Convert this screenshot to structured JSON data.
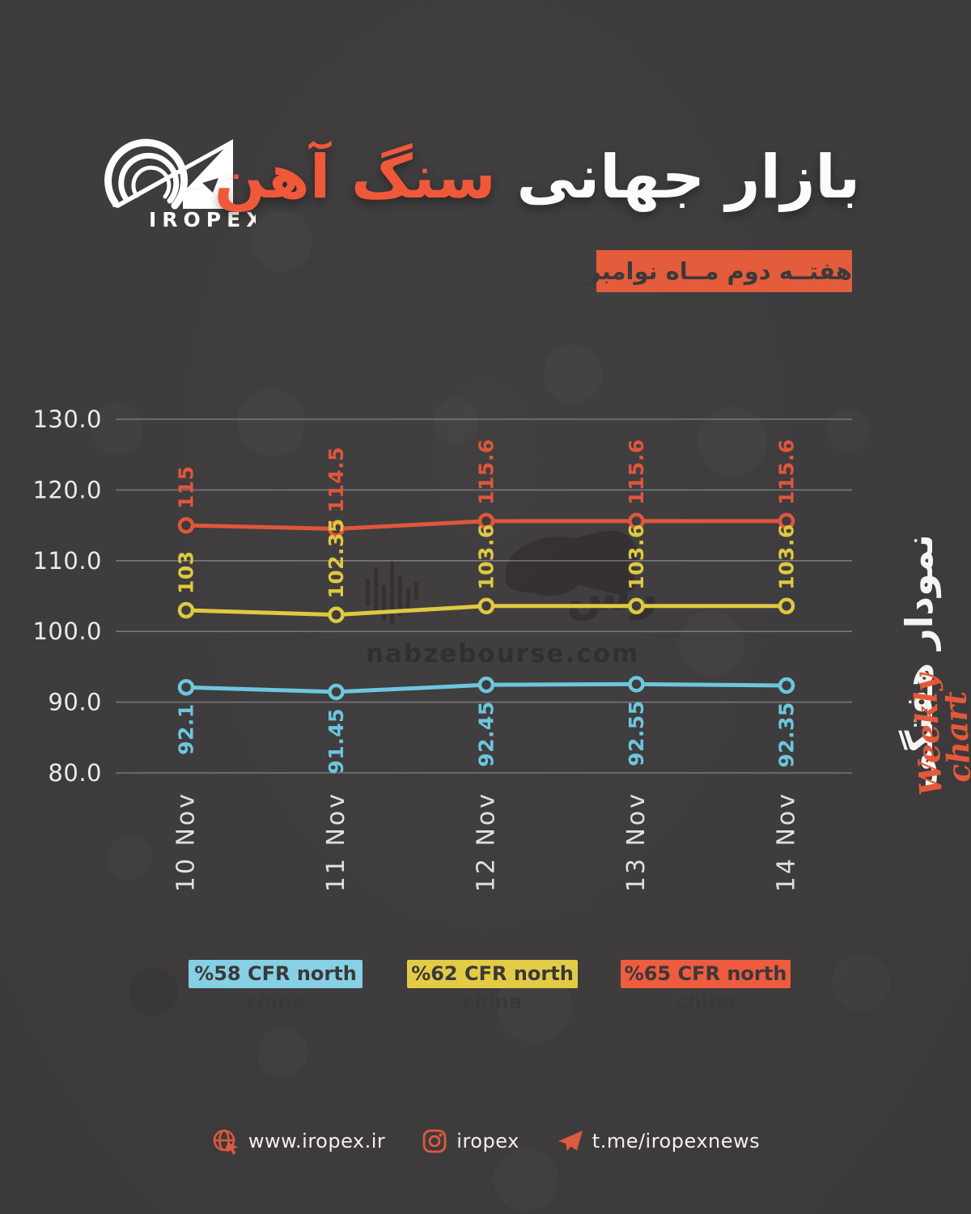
{
  "brand": {
    "logo_text": "IROPEX"
  },
  "header": {
    "title_primary": "بازار جهانی",
    "title_accent": "سنگ آهن",
    "subtitle": "هفتــه دوم مــاه نوامبر"
  },
  "side_label": {
    "persian": "نمودار هفتگی",
    "english_line1": "Weekly",
    "english_line2": "chart"
  },
  "watermark": {
    "persian": "نبض بورس",
    "domain": "nabzebourse.com"
  },
  "chart_data": {
    "type": "line",
    "x": [
      "10 Nov",
      "11 Nov",
      "12 Nov",
      "13 Nov",
      "14 Nov"
    ],
    "series": [
      {
        "name": "%65 CFR north china",
        "color": "#e0563c",
        "values": [
          115,
          114.5,
          115.6,
          115.6,
          115.6
        ],
        "data_label_position": "above"
      },
      {
        "name": "%62 CFR north china",
        "color": "#dfc93f",
        "values": [
          103,
          102.35,
          103.6,
          103.6,
          103.6
        ],
        "data_label_position": "above"
      },
      {
        "name": "%58 CFR north china",
        "color": "#6cc6de",
        "values": [
          92.1,
          91.45,
          92.45,
          92.55,
          92.35
        ],
        "data_label_position": "below"
      }
    ],
    "ylim": [
      80,
      130
    ],
    "yticks": [
      130,
      120,
      110,
      100,
      90,
      80
    ],
    "ytick_labels": [
      "130.0",
      "120.0",
      "110.0",
      "100.0",
      "90.0",
      "80.0"
    ],
    "grid": true,
    "legend_position": "bottom"
  },
  "legend": [
    {
      "label": "%58 CFR north china",
      "color": "#85d0e4"
    },
    {
      "label": "%62 CFR north china",
      "color": "#e3cc45"
    },
    {
      "label": "%65 CFR north china",
      "color": "#ee5b3f"
    }
  ],
  "footer": {
    "website": "www.iropex.ir",
    "instagram": "iropex",
    "telegram": "t.me/iropexnews"
  },
  "colors": {
    "background": "#3e3c3d",
    "accent": "#e8573b",
    "yellow": "#dfc93f",
    "cyan": "#6cc6de",
    "text": "#f2f0ee",
    "watermark": "#332f30"
  }
}
